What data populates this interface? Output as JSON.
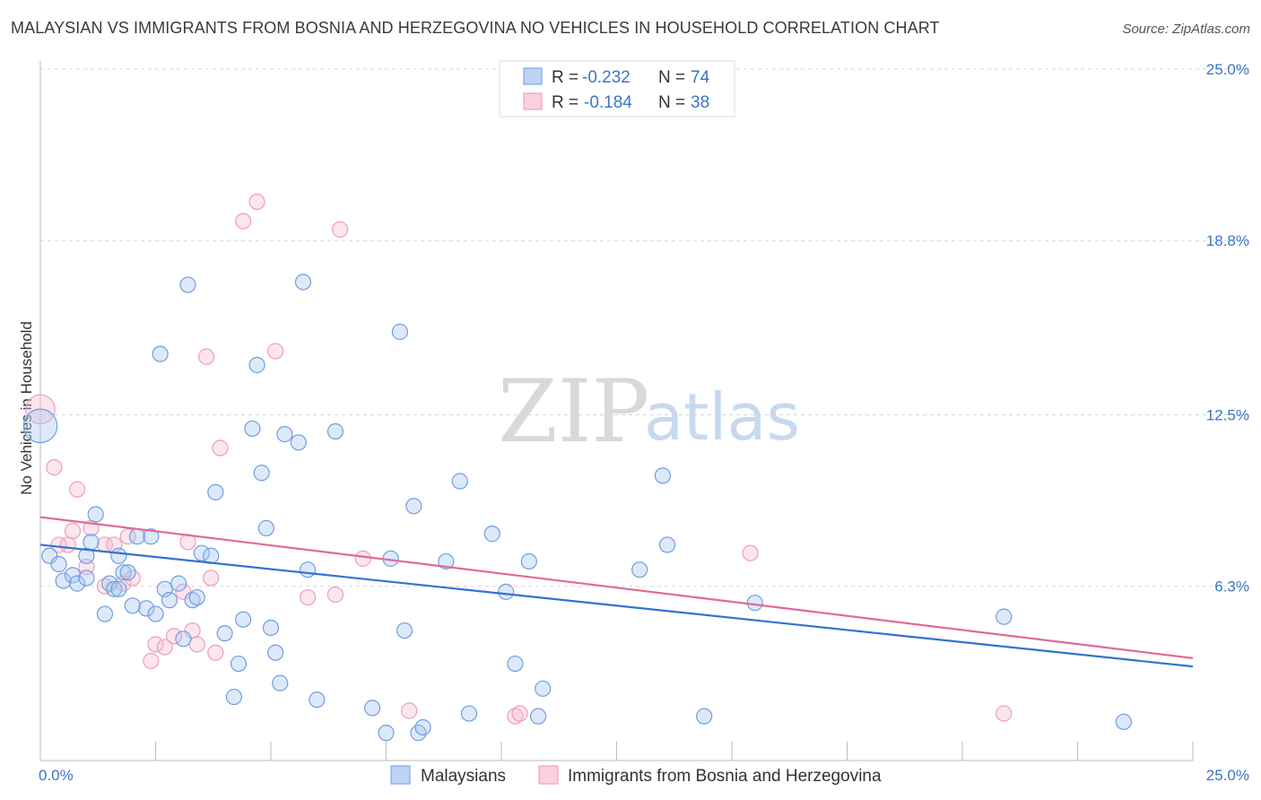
{
  "title": "MALAYSIAN VS IMMIGRANTS FROM BOSNIA AND HERZEGOVINA NO VEHICLES IN HOUSEHOLD CORRELATION CHART",
  "source": "Source: ZipAtlas.com",
  "watermark": {
    "part1": "ZIP",
    "part2": "atlas"
  },
  "legend_top": [
    {
      "r_label": "R =",
      "r_value": "-0.232",
      "n_label": "N =",
      "n_value": "74"
    },
    {
      "r_label": "R =",
      "r_value": "-0.184",
      "n_label": "N =",
      "n_value": "38"
    }
  ],
  "legend_bottom": [
    "Malaysians",
    "Immigrants from Bosnia and Herzegovina"
  ],
  "chart_data": {
    "type": "scatter",
    "title": "MALAYSIAN VS IMMIGRANTS FROM BOSNIA AND HERZEGOVINA NO VEHICLES IN HOUSEHOLD CORRELATION CHART",
    "xlabel": "",
    "ylabel": "No Vehicles in Household",
    "xlim": [
      0,
      25
    ],
    "ylim": [
      0,
      25
    ],
    "x_tick_labels": [
      "0.0%",
      "25.0%"
    ],
    "y_tick_labels": [
      "6.3%",
      "12.5%",
      "18.8%",
      "25.0%"
    ],
    "y_ticks": [
      6.3,
      12.5,
      18.8,
      25.0
    ],
    "grid": true,
    "legend_placement": "top-center",
    "colors": {
      "Malaysians": "#7fa9e8",
      "Immigrants from Bosnia and Herzegovina": "#f5a6c0",
      "trend_blue": "#3472d0",
      "trend_pink": "#e06a96"
    },
    "series": [
      {
        "name": "Malaysians",
        "trend": [
          [
            0,
            7.8
          ],
          [
            25,
            3.4
          ]
        ],
        "points": [
          [
            0.0,
            12.1,
            2.2
          ],
          [
            0.2,
            7.4,
            1
          ],
          [
            0.4,
            7.1,
            1
          ],
          [
            0.5,
            6.5,
            1
          ],
          [
            0.7,
            6.7,
            1
          ],
          [
            0.8,
            6.4,
            1
          ],
          [
            1.0,
            6.6,
            1
          ],
          [
            1.0,
            7.4,
            1
          ],
          [
            1.1,
            7.9,
            1
          ],
          [
            1.2,
            8.9,
            1
          ],
          [
            1.4,
            5.3,
            1
          ],
          [
            1.5,
            6.4,
            1
          ],
          [
            1.6,
            6.2,
            1
          ],
          [
            1.7,
            7.4,
            1
          ],
          [
            1.7,
            6.2,
            1
          ],
          [
            1.8,
            6.8,
            1
          ],
          [
            1.9,
            6.8,
            1
          ],
          [
            2.0,
            5.6,
            1
          ],
          [
            2.1,
            8.1,
            1
          ],
          [
            2.3,
            5.5,
            1
          ],
          [
            2.4,
            8.1,
            1
          ],
          [
            2.5,
            5.3,
            1
          ],
          [
            2.6,
            14.7,
            1
          ],
          [
            2.7,
            6.2,
            1
          ],
          [
            2.8,
            5.8,
            1
          ],
          [
            3.0,
            6.4,
            1
          ],
          [
            3.1,
            4.4,
            1
          ],
          [
            3.2,
            17.2,
            1
          ],
          [
            3.3,
            5.8,
            1
          ],
          [
            3.4,
            5.9,
            1
          ],
          [
            3.5,
            7.5,
            1
          ],
          [
            3.7,
            7.4,
            1
          ],
          [
            3.8,
            9.7,
            1
          ],
          [
            4.0,
            4.6,
            1
          ],
          [
            4.2,
            2.3,
            1
          ],
          [
            4.3,
            3.5,
            1
          ],
          [
            4.4,
            5.1,
            1
          ],
          [
            4.6,
            12.0,
            1
          ],
          [
            4.7,
            14.3,
            1
          ],
          [
            4.8,
            10.4,
            1
          ],
          [
            4.9,
            8.4,
            1
          ],
          [
            5.0,
            4.8,
            1
          ],
          [
            5.1,
            3.9,
            1
          ],
          [
            5.2,
            2.8,
            1
          ],
          [
            5.3,
            11.8,
            1
          ],
          [
            5.6,
            11.5,
            1
          ],
          [
            5.7,
            17.3,
            1
          ],
          [
            5.8,
            6.9,
            1
          ],
          [
            6.0,
            2.2,
            1
          ],
          [
            6.4,
            11.9,
            1
          ],
          [
            7.2,
            1.9,
            1
          ],
          [
            7.5,
            1.0,
            1
          ],
          [
            7.6,
            7.3,
            1
          ],
          [
            7.8,
            15.5,
            1
          ],
          [
            7.9,
            4.7,
            1
          ],
          [
            8.1,
            9.2,
            1
          ],
          [
            8.2,
            1.0,
            1
          ],
          [
            8.3,
            1.2,
            1
          ],
          [
            8.8,
            7.2,
            1
          ],
          [
            9.1,
            10.1,
            1
          ],
          [
            9.3,
            1.7,
            1
          ],
          [
            9.8,
            8.2,
            1
          ],
          [
            10.1,
            6.1,
            1
          ],
          [
            10.3,
            3.5,
            1
          ],
          [
            10.6,
            7.2,
            1
          ],
          [
            10.8,
            1.6,
            1
          ],
          [
            10.9,
            2.6,
            1
          ],
          [
            13.0,
            6.9,
            1
          ],
          [
            13.5,
            10.3,
            1
          ],
          [
            13.6,
            7.8,
            1
          ],
          [
            14.4,
            1.6,
            1
          ],
          [
            15.5,
            5.7,
            1
          ],
          [
            20.9,
            5.2,
            1
          ],
          [
            23.5,
            1.4,
            1
          ]
        ]
      },
      {
        "name": "Immigrants from Bosnia and Herzegovina",
        "trend": [
          [
            0,
            8.8
          ],
          [
            25,
            3.7
          ]
        ],
        "points": [
          [
            0.0,
            12.7,
            1.9
          ],
          [
            0.3,
            10.6,
            1
          ],
          [
            0.4,
            7.8,
            1
          ],
          [
            0.6,
            7.8,
            1
          ],
          [
            0.7,
            8.3,
            1
          ],
          [
            0.8,
            9.8,
            1
          ],
          [
            1.0,
            7.0,
            1
          ],
          [
            1.1,
            8.4,
            1
          ],
          [
            1.4,
            7.8,
            1
          ],
          [
            1.4,
            6.3,
            1
          ],
          [
            1.6,
            7.8,
            1
          ],
          [
            1.8,
            6.4,
            1
          ],
          [
            1.9,
            8.1,
            1
          ],
          [
            2.0,
            6.6,
            1
          ],
          [
            2.4,
            3.6,
            1
          ],
          [
            2.5,
            4.2,
            1
          ],
          [
            2.7,
            4.1,
            1
          ],
          [
            2.9,
            4.5,
            1
          ],
          [
            3.1,
            6.1,
            1
          ],
          [
            3.2,
            7.9,
            1
          ],
          [
            3.3,
            4.7,
            1
          ],
          [
            3.4,
            4.2,
            1
          ],
          [
            3.6,
            14.6,
            1
          ],
          [
            3.7,
            6.6,
            1
          ],
          [
            3.8,
            3.9,
            1
          ],
          [
            3.9,
            11.3,
            1
          ],
          [
            4.4,
            19.5,
            1
          ],
          [
            4.7,
            20.2,
            1
          ],
          [
            5.1,
            14.8,
            1
          ],
          [
            5.8,
            5.9,
            1
          ],
          [
            6.4,
            6.0,
            1
          ],
          [
            6.5,
            19.2,
            1
          ],
          [
            7.0,
            7.3,
            1
          ],
          [
            8.0,
            1.8,
            1
          ],
          [
            10.3,
            1.6,
            1
          ],
          [
            10.4,
            1.7,
            1
          ],
          [
            15.4,
            7.5,
            1
          ],
          [
            20.9,
            1.7,
            1
          ]
        ]
      }
    ]
  }
}
